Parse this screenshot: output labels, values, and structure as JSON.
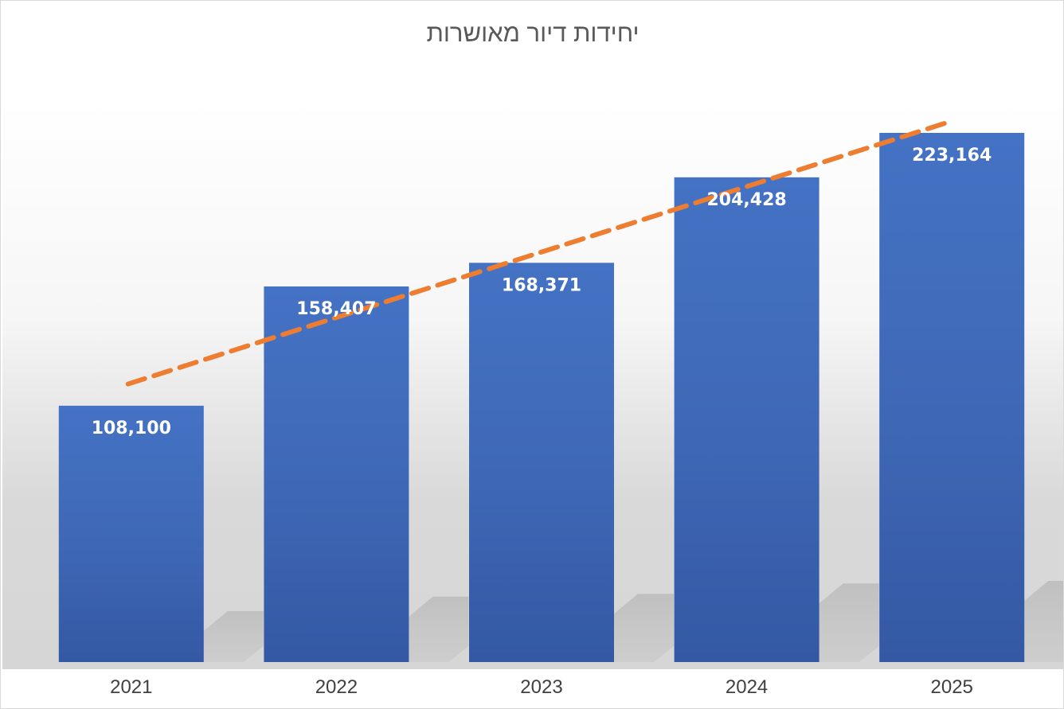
{
  "chart_data": {
    "type": "bar",
    "title": "יחידות דיור מאושרות",
    "categories": [
      "2021",
      "2022",
      "2023",
      "2024",
      "2025"
    ],
    "series": [
      {
        "values": [
          108100,
          158407,
          168371,
          204428,
          223164
        ],
        "data_labels": [
          "108,100",
          "158,407",
          "168,371",
          "204,428",
          "223,164"
        ],
        "color": "#4472C4"
      }
    ],
    "trendline": {
      "type": "linear",
      "style": "dashed",
      "color": "#ED7D31"
    },
    "ylim": [
      0,
      250000
    ],
    "y_axis_visible": false,
    "grid": false,
    "legend": "none",
    "xlabel": "",
    "ylabel": ""
  }
}
